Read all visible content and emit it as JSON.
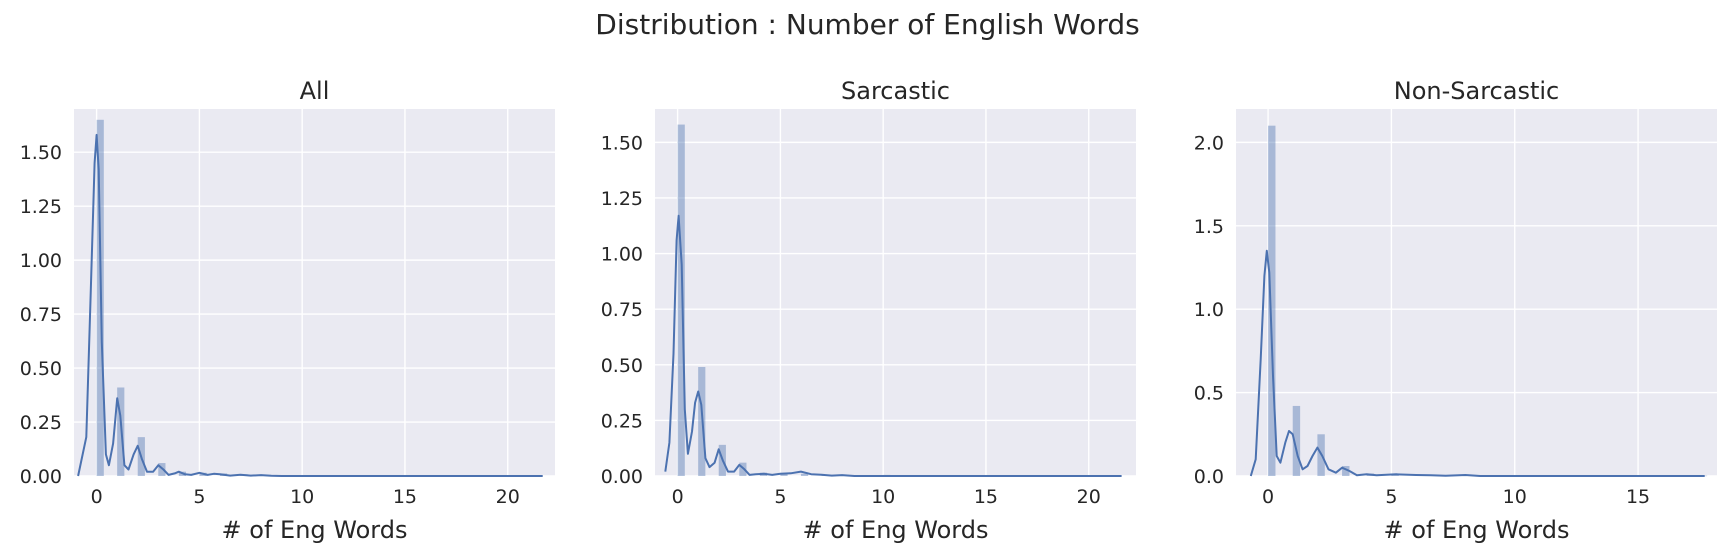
{
  "title": "Distribution : Number of English Words",
  "colors": {
    "plot_bg": "#eaeaf2",
    "grid": "#ffffff",
    "bar": "#4c72b0",
    "kde": "#4c72b0",
    "text": "#262626"
  },
  "chart_data": [
    {
      "type": "histogram+kde",
      "title": "All",
      "xlabel": "# of Eng Words",
      "ylabel": "",
      "xlim": [
        -1.1,
        22.3
      ],
      "ylim": [
        0,
        1.7
      ],
      "xticks": [
        0,
        5,
        10,
        15,
        20
      ],
      "yticks": [
        0.0,
        0.25,
        0.5,
        0.75,
        1.0,
        1.25,
        1.5
      ],
      "ytick_decimals": 2,
      "grid": true,
      "bars": {
        "bin_width": 0.35,
        "x": [
          0,
          1,
          2,
          3,
          4,
          5,
          6,
          7,
          8,
          17,
          21
        ],
        "values": [
          1.65,
          0.41,
          0.18,
          0.06,
          0.02,
          0.015,
          0.012,
          0.008,
          0.006,
          0.002,
          0.002
        ]
      },
      "kde": {
        "x": [
          -0.9,
          -0.5,
          -0.3,
          -0.1,
          0.0,
          0.1,
          0.25,
          0.45,
          0.6,
          0.8,
          1.0,
          1.15,
          1.35,
          1.55,
          1.8,
          2.0,
          2.2,
          2.45,
          2.75,
          3.0,
          3.25,
          3.5,
          3.8,
          4.0,
          4.3,
          4.6,
          5.0,
          5.4,
          5.7,
          6.0,
          6.5,
          7.0,
          7.5,
          8.0,
          8.5,
          9.0,
          12.0,
          16.0,
          21.7
        ],
        "y": [
          0.0,
          0.18,
          0.8,
          1.45,
          1.58,
          1.42,
          0.62,
          0.1,
          0.05,
          0.15,
          0.36,
          0.28,
          0.05,
          0.03,
          0.1,
          0.14,
          0.08,
          0.02,
          0.02,
          0.05,
          0.03,
          0.005,
          0.012,
          0.02,
          0.008,
          0.005,
          0.015,
          0.005,
          0.01,
          0.008,
          0.002,
          0.006,
          0.002,
          0.004,
          0.001,
          0.0,
          0.0,
          0.0,
          0.0
        ]
      }
    },
    {
      "type": "histogram+kde",
      "title": "Sarcastic",
      "xlabel": "# of Eng Words",
      "ylabel": "",
      "xlim": [
        -1.1,
        22.3
      ],
      "ylim": [
        0,
        1.65
      ],
      "xticks": [
        0,
        5,
        10,
        15,
        20
      ],
      "yticks": [
        0.0,
        0.25,
        0.5,
        0.75,
        1.0,
        1.25,
        1.5
      ],
      "ytick_decimals": 2,
      "grid": true,
      "bars": {
        "bin_width": 0.35,
        "x": [
          0,
          1,
          2,
          3,
          4,
          5,
          6,
          7,
          10,
          21
        ],
        "values": [
          1.58,
          0.49,
          0.14,
          0.06,
          0.015,
          0.012,
          0.01,
          0.005,
          0.005,
          0.003
        ]
      },
      "kde": {
        "x": [
          -0.6,
          -0.4,
          -0.2,
          -0.05,
          0.05,
          0.2,
          0.35,
          0.5,
          0.7,
          0.85,
          1.0,
          1.15,
          1.35,
          1.55,
          1.8,
          2.0,
          2.2,
          2.45,
          2.75,
          3.0,
          3.25,
          3.5,
          3.8,
          4.2,
          4.6,
          5.0,
          5.5,
          6.0,
          6.5,
          7.0,
          7.5,
          8.0,
          8.6,
          10.0,
          15.0,
          21.6
        ],
        "y": [
          0.02,
          0.15,
          0.55,
          1.06,
          1.17,
          0.95,
          0.3,
          0.1,
          0.2,
          0.33,
          0.38,
          0.32,
          0.08,
          0.04,
          0.06,
          0.12,
          0.07,
          0.02,
          0.02,
          0.05,
          0.03,
          0.005,
          0.008,
          0.01,
          0.005,
          0.01,
          0.012,
          0.02,
          0.008,
          0.006,
          0.002,
          0.004,
          0.0,
          0.0,
          0.0,
          0.0
        ]
      }
    },
    {
      "type": "histogram+kde",
      "title": "Non-Sarcastic",
      "xlabel": "# of Eng Words",
      "ylabel": "",
      "xlim": [
        -1.3,
        18.2
      ],
      "ylim": [
        0,
        2.2
      ],
      "xticks": [
        0,
        5,
        10,
        15
      ],
      "yticks": [
        0.0,
        0.5,
        1.0,
        1.5,
        2.0
      ],
      "ytick_decimals": 1,
      "grid": true,
      "bars": {
        "bin_width": 0.3,
        "x": [
          0,
          1,
          2,
          3,
          4,
          5,
          6,
          8,
          17.5
        ],
        "values": [
          2.1,
          0.42,
          0.25,
          0.06,
          0.015,
          0.01,
          0.008,
          0.004,
          0.002
        ]
      },
      "kde": {
        "x": [
          -0.7,
          -0.5,
          -0.3,
          -0.15,
          -0.05,
          0.05,
          0.2,
          0.35,
          0.5,
          0.7,
          0.85,
          1.0,
          1.2,
          1.4,
          1.6,
          1.8,
          2.0,
          2.2,
          2.45,
          2.75,
          3.0,
          3.3,
          3.6,
          4.0,
          4.4,
          4.8,
          5.2,
          6.0,
          6.6,
          7.2,
          8.0,
          8.6,
          10.0,
          17.7
        ],
        "y": [
          0.0,
          0.1,
          0.7,
          1.2,
          1.35,
          1.22,
          0.6,
          0.12,
          0.08,
          0.2,
          0.27,
          0.25,
          0.12,
          0.04,
          0.06,
          0.12,
          0.17,
          0.12,
          0.04,
          0.02,
          0.05,
          0.03,
          0.005,
          0.01,
          0.005,
          0.008,
          0.01,
          0.006,
          0.004,
          0.002,
          0.006,
          0.0,
          0.0,
          0.0
        ]
      }
    }
  ]
}
